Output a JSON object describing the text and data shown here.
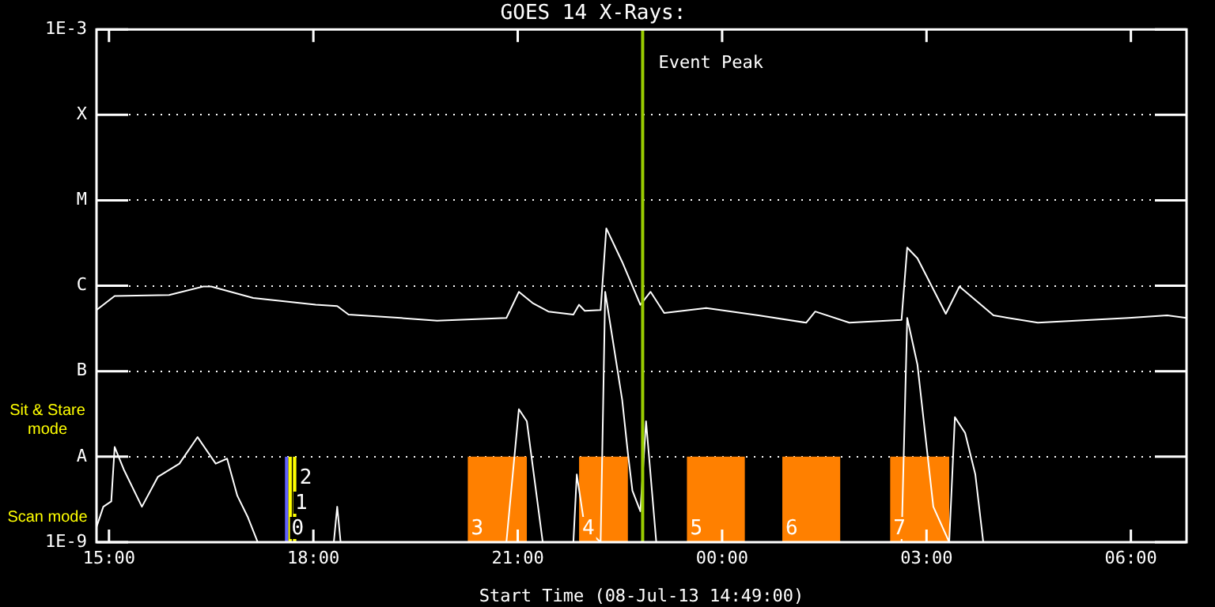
{
  "chart_data": {
    "type": "line",
    "title": "GOES 14 X-Rays:",
    "xlabel": "Start Time (08-Jul-13 14:49:00)",
    "xlim": [
      "--07-08T14:49",
      "--07-09T06:49"
    ],
    "xticks": [
      {
        "value": "--07-08T15:00",
        "label": "15:00"
      },
      {
        "value": "--07-08T18:00",
        "label": "18:00"
      },
      {
        "value": "--07-08T21:00",
        "label": "21:00"
      },
      {
        "value": "--07-09T00:00",
        "label": "00:00"
      },
      {
        "value": "--07-09T03:00",
        "label": "03:00"
      },
      {
        "value": "--07-09T06:00",
        "label": "06:00"
      }
    ],
    "ylim": [
      1e-09,
      0.001
    ],
    "yticks": [
      {
        "value": 1e-09,
        "label": "1E-9"
      },
      {
        "value": 1e-08,
        "label": "A"
      },
      {
        "value": 1e-07,
        "label": "B"
      },
      {
        "value": 1e-06,
        "label": "C"
      },
      {
        "value": 1e-05,
        "label": "M"
      },
      {
        "value": 0.0001,
        "label": "X"
      },
      {
        "value": 0.001,
        "label": "1E-3"
      }
    ],
    "log": "y",
    "grid": "y",
    "marker": "none",
    "series": [
      {
        "color": "#ffffff",
        "x": [
          "--07-08T14:49",
          "--07-08T15:05",
          "--07-08T15:53",
          "--07-08T16:23",
          "--07-08T16:30",
          "--07-08T17:07",
          "--07-08T18:02",
          "--07-08T18:21",
          "--07-08T18:31",
          "--07-08T19:17",
          "--07-08T19:49",
          "--07-08T20:50",
          "--07-08T21:01",
          "--07-08T21:13",
          "--07-08T21:27",
          "--07-08T21:49",
          "--07-08T21:54",
          "--07-08T21:59",
          "--07-08T22:13",
          "--07-08T22:18",
          "--07-08T22:32",
          "--07-08T22:48",
          "--07-08T22:57",
          "--07-08T23:09",
          "--07-08T23:46",
          "--07-09T00:32",
          "--07-09T01:14",
          "--07-09T01:22",
          "--07-09T01:52",
          "--07-09T02:38",
          "--07-09T02:43",
          "--07-09T02:52",
          "--07-09T03:17",
          "--07-09T03:29",
          "--07-09T03:59",
          "--07-09T04:38",
          "--07-09T05:58",
          "--07-09T06:32",
          "--07-09T06:49"
        ],
        "values": [
          5.2e-07,
          7.6e-07,
          7.8e-07,
          9.8e-07,
          9.8e-07,
          7.2e-07,
          6e-07,
          5.8e-07,
          4.6e-07,
          4.2e-07,
          3.9e-07,
          4.2e-07,
          8.5e-07,
          6.3e-07,
          5e-07,
          4.6e-07,
          6e-07,
          5.1e-07,
          5.2e-07,
          4.7e-06,
          1.9e-06,
          6e-07,
          8.5e-07,
          4.8e-07,
          5.5e-07,
          4.5e-07,
          3.7e-07,
          5e-07,
          3.7e-07,
          4e-07,
          2.8e-06,
          2.1e-06,
          4.7e-07,
          9.8e-07,
          4.5e-07,
          3.7e-07,
          4.2e-07,
          4.5e-07,
          4.2e-07
        ]
      },
      {
        "color": "#ffffff",
        "x": [
          "--07-08T14:49",
          "--07-08T14:55",
          "--07-08T15:02",
          "--07-08T15:05",
          "--07-08T15:13",
          "--07-08T15:29",
          "--07-08T15:43",
          "--07-08T16:02",
          "--07-08T16:18",
          "--07-08T16:34",
          "--07-08T16:44",
          "--07-08T16:53",
          "--07-08T17:02",
          "--07-08T17:11",
          "--07-08T18:18",
          "--07-08T18:21",
          "--07-08T18:24",
          "--07-08T20:50",
          "--07-08T21:01",
          "--07-08T21:08",
          "--07-08T21:22",
          "--07-08T21:49",
          "--07-08T21:52",
          "--07-08T21:59",
          "--07-08T22:13",
          "--07-08T22:17",
          "--07-08T22:32",
          "--07-08T22:37",
          "--07-08T22:41",
          "--07-08T22:48",
          "--07-08T22:53",
          "--07-08T23:02",
          "--07-09T02:38",
          "--07-09T02:43",
          "--07-09T02:52",
          "--07-09T03:06",
          "--07-09T03:20",
          "--07-09T03:25",
          "--07-09T03:34",
          "--07-09T03:43",
          "--07-09T03:50",
          "--07-09T06:49"
        ],
        "values": [
          1.5e-09,
          2.6e-09,
          3e-09,
          1.3e-08,
          7.1e-09,
          2.6e-09,
          5.8e-09,
          8.3e-09,
          1.7e-08,
          8.3e-09,
          9.5e-09,
          3.5e-09,
          2e-09,
          1e-09,
          1e-09,
          2.6e-09,
          1e-09,
          1e-09,
          3.6e-08,
          2.6e-08,
          1e-09,
          1e-09,
          6.2e-09,
          1.5e-09,
          1e-09,
          8.5e-07,
          4.6e-08,
          1.1e-08,
          4e-09,
          2.3e-09,
          2.6e-08,
          1e-09,
          1e-09,
          4.2e-07,
          1.2e-07,
          2.6e-09,
          1e-09,
          2.9e-08,
          1.9e-08,
          6.2e-09,
          1e-09,
          1e-09
        ]
      }
    ],
    "ref_lines": [
      {
        "axis": "x",
        "value": "--07-08T22:50",
        "label": "Event Peak",
        "color": "#99cc00"
      }
    ],
    "bands": [
      {
        "axis": "x",
        "from": "--07-08T17:35",
        "to": "--07-08T17:38",
        "label": "0",
        "color": "#6060ff"
      },
      {
        "axis": "x",
        "from": "--07-08T17:38",
        "to": "--07-08T17:41",
        "label": "1",
        "color": "#ffff00"
      },
      {
        "axis": "x",
        "from": "--07-08T17:42",
        "to": "--07-08T17:45",
        "label": "2",
        "color": "#ffff00"
      },
      {
        "axis": "x",
        "from": "--07-08T20:16",
        "to": "--07-08T21:08",
        "label": "3",
        "color": "#ff8000"
      },
      {
        "axis": "x",
        "from": "--07-08T21:54",
        "to": "--07-08T22:37",
        "label": "4",
        "color": "#ff8000"
      },
      {
        "axis": "x",
        "from": "--07-08T23:29",
        "to": "--07-09T00:20",
        "label": "5",
        "color": "#ff8000"
      },
      {
        "axis": "x",
        "from": "--07-09T00:53",
        "to": "--07-09T01:44",
        "label": "6",
        "color": "#ff8000"
      },
      {
        "axis": "x",
        "from": "--07-09T02:28",
        "to": "--07-09T03:20",
        "label": "7",
        "color": "#ff8000"
      }
    ],
    "annotations": [
      "Sit & Stare mode",
      "Scan mode"
    ]
  }
}
